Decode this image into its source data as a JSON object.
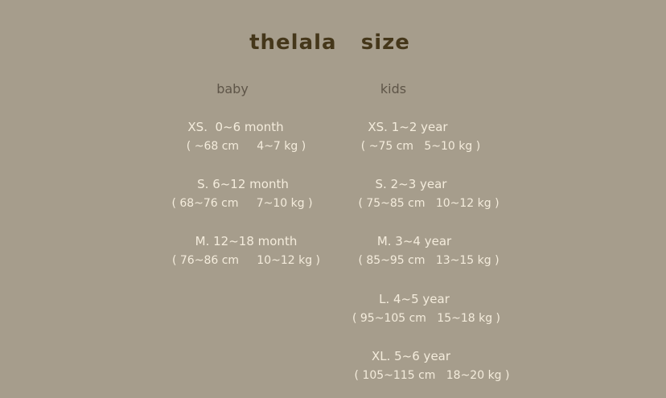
{
  "title": "thelala   size",
  "colors": {
    "background": "#a69d8c",
    "title": "#45371a",
    "text": "#f4ecdc"
  },
  "baby": {
    "header": "baby",
    "items": [
      {
        "size": "XS.  0~6 month",
        "detail": "( ~68 cm     4~7 kg )"
      },
      {
        "size": "S. 6~12 month",
        "detail": "( 68~76 cm     7~10 kg )"
      },
      {
        "size": "M. 12~18 month",
        "detail": "( 76~86 cm     10~12 kg )"
      }
    ]
  },
  "kids": {
    "header": "kids",
    "items": [
      {
        "size": "XS. 1~2 year",
        "detail": "( ~75 cm   5~10 kg )"
      },
      {
        "size": "S. 2~3 year",
        "detail": "( 75~85 cm   10~12 kg )"
      },
      {
        "size": "M. 3~4 year",
        "detail": "( 85~95 cm   13~15 kg )"
      },
      {
        "size": "L. 4~5 year",
        "detail": "( 95~105 cm   15~18 kg )"
      },
      {
        "size": "XL. 5~6 year",
        "detail": "( 105~115 cm   18~20 kg )"
      }
    ]
  }
}
